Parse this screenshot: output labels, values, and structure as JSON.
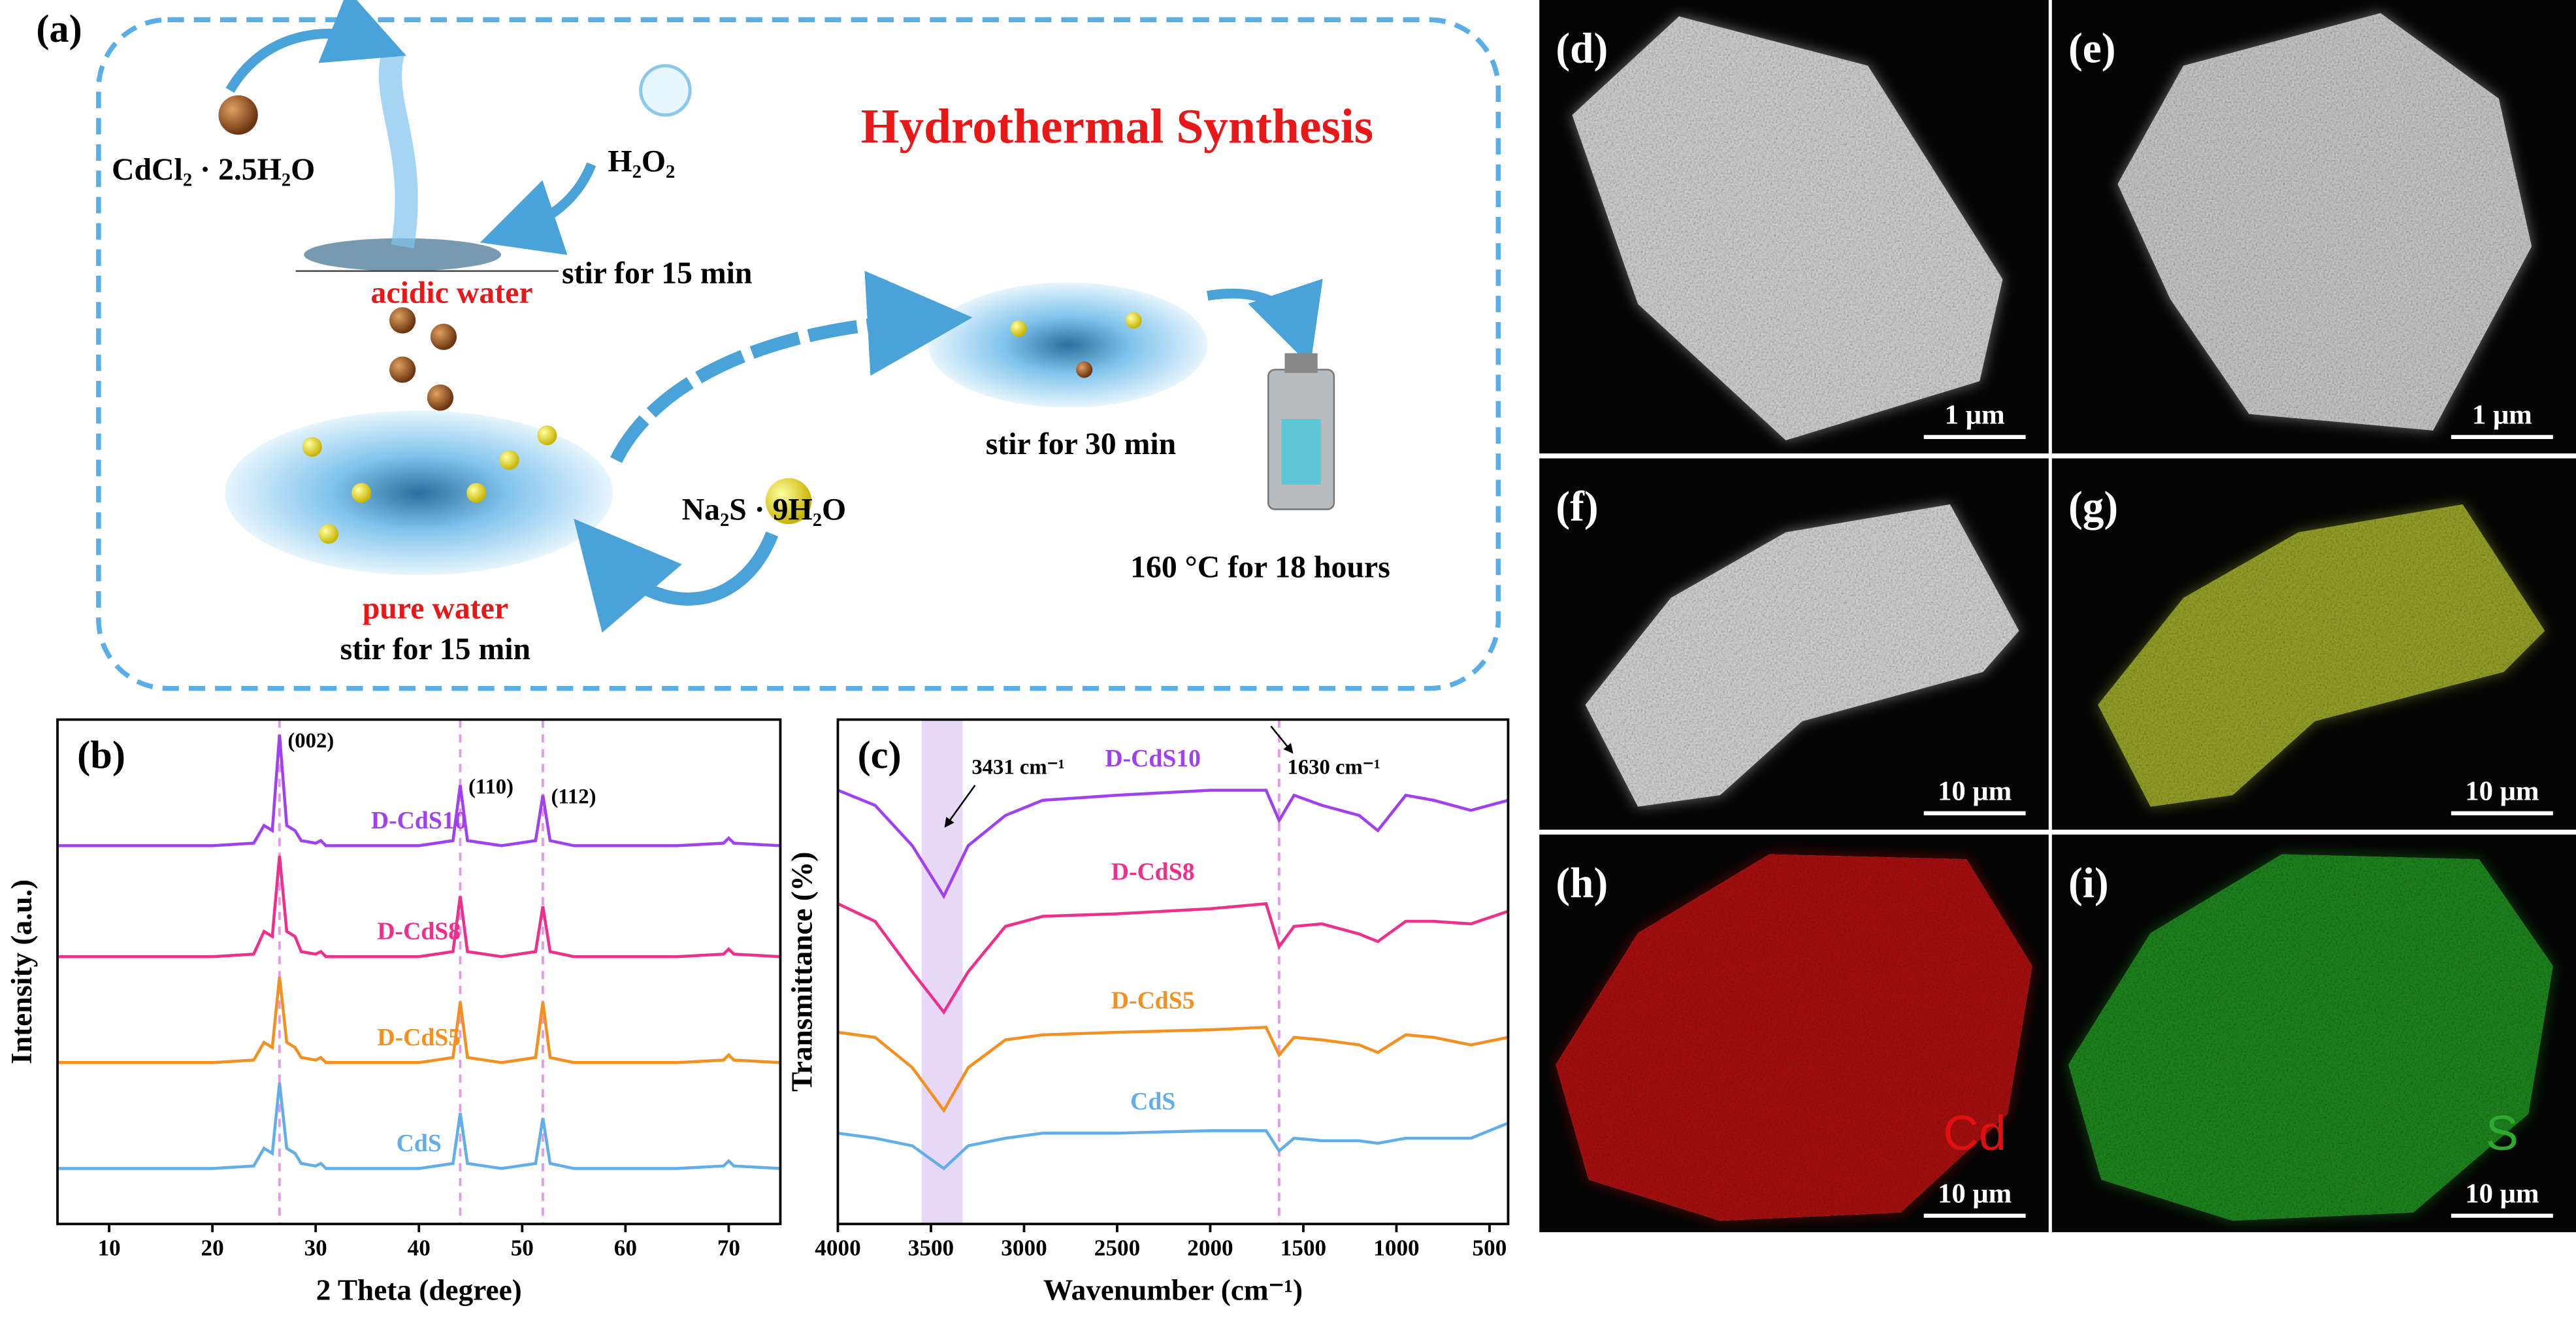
{
  "panel_a": {
    "label": "(a)",
    "title": "Hydrothermal Synthesis",
    "cdcl2": "CdCl₂ · 2.5H₂O",
    "h2o2": "H₂O₂",
    "stir_1": "stir for 15 min",
    "acidic_water": "acidic water",
    "stir_2": "stir for 30 min",
    "na2s": "Na₂S · 9H₂O",
    "heating": "160 °C for 18 hours",
    "pure_water": "pure water",
    "stir_3": "stir for 15 min"
  },
  "chart_data": [
    {
      "type": "line",
      "panel_label": "(b)",
      "x_label": "2 Theta (degree)",
      "y_label": "Intensity (a.u.)",
      "xlim": [
        5,
        75
      ],
      "ylim": [
        0,
        100
      ],
      "xticks": [
        10,
        20,
        30,
        40,
        50,
        60,
        70
      ],
      "x": [
        5,
        10,
        15,
        20,
        24,
        25,
        25.8,
        26.5,
        27.2,
        28,
        28.6,
        30,
        30.5,
        31,
        35,
        40,
        43.3,
        44,
        44.7,
        48,
        51.3,
        52,
        52.7,
        55,
        60,
        65,
        69.5,
        70,
        70.5,
        75
      ],
      "series": [
        {
          "name": "D-CdS10",
          "color": "#a040f0",
          "values": [
            75,
            75,
            75,
            75,
            75.5,
            79,
            78,
            97,
            79,
            78,
            76,
            75.5,
            76,
            75,
            75,
            75,
            76,
            87,
            76,
            75,
            76,
            85,
            76,
            75,
            75,
            75,
            75.5,
            76.5,
            75.5,
            75
          ]
        },
        {
          "name": "D-CdS8",
          "color": "#ee2f8c",
          "values": [
            53,
            53,
            53,
            53,
            53.5,
            58,
            57,
            73,
            58,
            57,
            54,
            53.5,
            54,
            53,
            53,
            53,
            54,
            65,
            54,
            53,
            54,
            63,
            54,
            53,
            53,
            53,
            53.5,
            54.5,
            53.5,
            53
          ]
        },
        {
          "name": "D-CdS5",
          "color": "#f39020",
          "values": [
            32,
            32,
            32,
            32,
            32.5,
            36,
            35,
            49,
            36,
            35,
            33,
            32.5,
            33,
            32,
            32,
            32,
            33,
            44,
            33,
            32,
            33,
            44,
            33,
            32,
            32,
            32,
            32.5,
            33.5,
            32.5,
            32
          ]
        },
        {
          "name": "CdS",
          "color": "#62aee8",
          "values": [
            11,
            11,
            11,
            11,
            11.5,
            15,
            14,
            28,
            15,
            14,
            12,
            11.5,
            12,
            11,
            11,
            11,
            12,
            22,
            12,
            11,
            12,
            21,
            12,
            11,
            11,
            11,
            11.5,
            12.5,
            11.5,
            11
          ]
        }
      ],
      "reference_color": "#e39ae8",
      "reference_lines": [
        {
          "value": 26.5,
          "label": "(002)"
        },
        {
          "value": 44,
          "label": "(110)"
        },
        {
          "value": 52,
          "label": "(112)"
        }
      ]
    },
    {
      "type": "line",
      "panel_label": "(c)",
      "x_label": "Wavenumber (cm⁻¹)",
      "y_label": "Transmittance (%)",
      "xlim": [
        4000,
        400
      ],
      "ylim": [
        0,
        100
      ],
      "xticks": [
        4000,
        3500,
        3000,
        2500,
        2000,
        1500,
        1000,
        500
      ],
      "x": [
        4000,
        3800,
        3600,
        3431,
        3300,
        3100,
        2900,
        2500,
        2000,
        1700,
        1630,
        1550,
        1400,
        1200,
        1100,
        950,
        800,
        600,
        400
      ],
      "series": [
        {
          "name": "D-CdS10",
          "color": "#a040f0",
          "values": [
            86,
            83,
            75,
            65,
            75,
            81,
            84,
            85,
            86,
            86,
            80,
            85,
            83,
            81,
            78,
            85,
            84,
            82,
            84
          ]
        },
        {
          "name": "D-CdS8",
          "color": "#ee2f8c",
          "values": [
            63.5,
            60,
            50,
            42,
            50,
            59,
            61,
            61.5,
            62.5,
            63.5,
            55,
            59,
            59.5,
            57.5,
            56,
            60,
            60,
            59.5,
            62
          ]
        },
        {
          "name": "D-CdS5",
          "color": "#f39020",
          "values": [
            38,
            37,
            31,
            22.5,
            31,
            36.5,
            37.5,
            38,
            38.5,
            39,
            33.5,
            37,
            36.5,
            35.5,
            34,
            37.5,
            37,
            35.5,
            37
          ]
        },
        {
          "name": "CdS",
          "color": "#62aee8",
          "values": [
            18,
            17,
            15.5,
            11,
            15.5,
            17,
            18,
            18,
            18.5,
            18.5,
            14.5,
            17,
            16.5,
            16.5,
            16,
            17,
            17,
            17,
            20
          ]
        }
      ],
      "band": [
        3550,
        3330
      ],
      "band_color": "#e8d8f8",
      "band_label": "3431 cm⁻¹",
      "reference_color": "#e39ae8",
      "reference_lines": [
        {
          "value": 1630,
          "label": "1630 cm⁻¹"
        }
      ]
    }
  ],
  "micrographs": [
    {
      "label": "(d)",
      "scale_bar": "1 μm"
    },
    {
      "label": "(e)",
      "scale_bar": "1 μm"
    },
    {
      "label": "(f)",
      "scale_bar": "10 μm"
    },
    {
      "label": "(g)",
      "scale_bar": "10 μm"
    },
    {
      "label": "(h)",
      "scale_bar": "10 μm",
      "element": "Cd"
    },
    {
      "label": "(i)",
      "scale_bar": "10 μm",
      "element": "S"
    }
  ]
}
